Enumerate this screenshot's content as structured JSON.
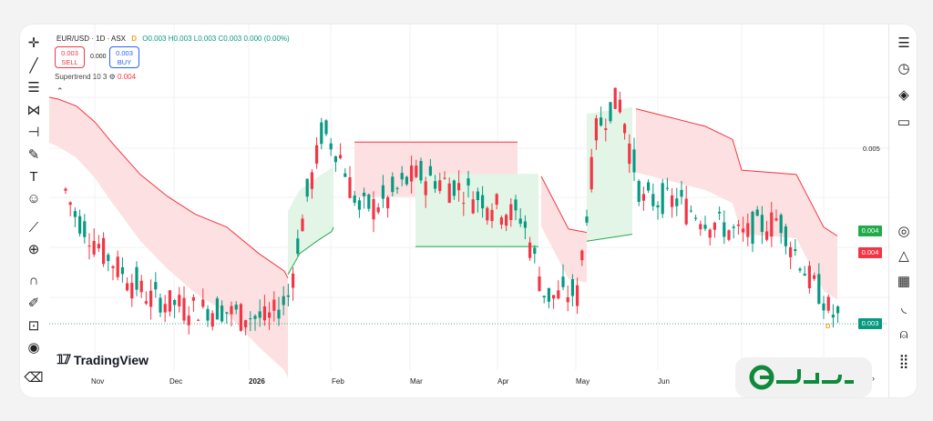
{
  "legend": {
    "symbol": "EUR/USD · 1D · ASX",
    "badge": "D",
    "ohlc": "O0.003 H0.003 L0.003 C0.003 0.000 (0.00%)"
  },
  "trade": {
    "sell_price": "0.003",
    "sell_label": "SELL",
    "spread": "0.000",
    "buy_price": "0.003",
    "buy_label": "BUY"
  },
  "indicator": {
    "name": "Supertrend 10 3",
    "value": "0.004"
  },
  "price_axis": {
    "label_0005": "0.005",
    "tag_green": "0.004",
    "tag_red": "0.004",
    "tag_last": "0.003",
    "live_badge": "D"
  },
  "colors": {
    "up": "#089981",
    "down": "#f23645",
    "bear_fill": "#fde0e1",
    "bull_fill": "#e3f5e7"
  },
  "x_labels": [
    "Nov",
    "Dec",
    "2026",
    "Feb",
    "Mar",
    "Apr",
    "May",
    "Jun"
  ],
  "branding": {
    "tv_text": "TradingView"
  },
  "toolbar_left": [
    "crosshair-icon",
    "trendline-icon",
    "fib-icon",
    "pattern-icon",
    "measure-icon",
    "brush-icon",
    "text-icon",
    "emoji-icon",
    "ruler-icon",
    "zoom-icon",
    "magnet-icon",
    "lock-draw-icon",
    "lock-icon",
    "eye-icon",
    "trash-icon"
  ],
  "toolbar_right": [
    "watchlist-icon",
    "alert-icon",
    "layers-icon",
    "chat-icon",
    "target-icon",
    "ideas-icon",
    "calendar-icon",
    "broadcast-icon",
    "bell-icon",
    "grid-icon"
  ],
  "chart_data": {
    "type": "candlestick",
    "supertrend": {
      "bear_line": [
        [
          0,
          0.00558
        ],
        [
          10,
          0.00556
        ],
        [
          30,
          0.00548
        ],
        [
          50,
          0.0053
        ],
        [
          70,
          0.00505
        ],
        [
          100,
          0.0047
        ],
        [
          130,
          0.00445
        ],
        [
          160,
          0.00425
        ],
        [
          195,
          0.0041
        ],
        [
          230,
          0.0038
        ],
        [
          258,
          0.0036
        ],
        [
          262,
          0.00352
        ]
      ],
      "bull_line_1": [
        [
          262,
          0.00356
        ],
        [
          275,
          0.0038
        ],
        [
          295,
          0.00395
        ],
        [
          310,
          0.00405
        ],
        [
          312,
          0.0041
        ]
      ],
      "bear_line_2": [
        [
          335,
          0.00507
        ],
        [
          400,
          0.00507
        ],
        [
          432,
          0.00507
        ],
        [
          472,
          0.00507
        ],
        [
          514,
          0.00507
        ]
      ],
      "bull_line_2": [
        [
          402,
          0.00388
        ],
        [
          446,
          0.00388
        ],
        [
          514,
          0.00388
        ],
        [
          537,
          0.00388
        ]
      ],
      "bear_line_3": [
        [
          540,
          0.00468
        ],
        [
          570,
          0.00408
        ],
        [
          590,
          0.00404
        ]
      ],
      "bull_line_3": [
        [
          590,
          0.00394
        ],
        [
          640,
          0.00402
        ]
      ],
      "bear_line_4": [
        [
          644,
          0.00545
        ],
        [
          720,
          0.00525
        ],
        [
          750,
          0.0051
        ],
        [
          760,
          0.00475
        ],
        [
          820,
          0.0047
        ],
        [
          850,
          0.0041
        ],
        [
          865,
          0.004
        ]
      ]
    }
  }
}
